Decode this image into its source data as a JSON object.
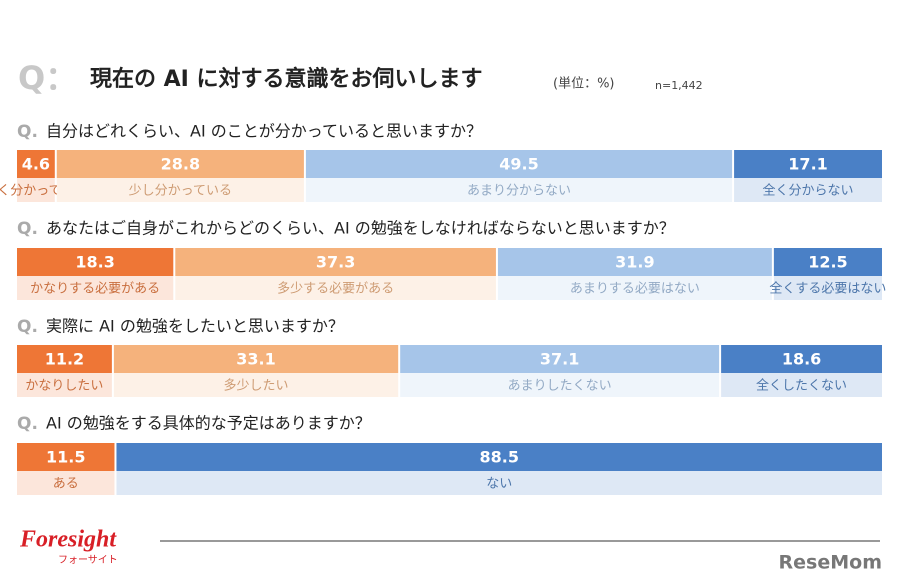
{
  "header": {
    "mark": "Q：",
    "title": "現在の AI に対する意識をお伺いします",
    "unit": "(単位：%)",
    "n": "n=1,442"
  },
  "question_mark": "Q.",
  "chart_data": [
    {
      "type": "stacked_bar",
      "title": "自分はどれくらい、AI のことが分かっていると思いますか？",
      "categories": [
        "よく分かっている",
        "少し分かっている",
        "あまり分からない",
        "全く分からない"
      ],
      "values": [
        4.6,
        28.8,
        49.5,
        17.1
      ],
      "colors": [
        "#ee7636",
        "#f5b27c",
        "#a6c5e9",
        "#4a80c6"
      ],
      "xlim": [
        0,
        100
      ]
    },
    {
      "type": "stacked_bar",
      "title": "あなたはご自身がこれからどのくらい、AI の勉強をしなければならないと思いますか？",
      "categories": [
        "かなりする必要がある",
        "多少する必要がある",
        "あまりする必要はない",
        "全くする必要はない"
      ],
      "values": [
        18.3,
        37.3,
        31.9,
        12.5
      ],
      "colors": [
        "#ee7636",
        "#f5b27c",
        "#a6c5e9",
        "#4a80c6"
      ],
      "xlim": [
        0,
        100
      ]
    },
    {
      "type": "stacked_bar",
      "title": "実際に AI の勉強をしたいと思いますか？",
      "categories": [
        "かなりしたい",
        "多少したい",
        "あまりしたくない",
        "全くしたくない"
      ],
      "values": [
        11.2,
        33.1,
        37.1,
        18.6
      ],
      "colors": [
        "#ee7636",
        "#f5b27c",
        "#a6c5e9",
        "#4a80c6"
      ],
      "xlim": [
        0,
        100
      ]
    },
    {
      "type": "stacked_bar",
      "title": "AI の勉強をする具体的な予定はありますか？",
      "categories": [
        "ある",
        "ない"
      ],
      "values": [
        11.5,
        88.5
      ],
      "colors": [
        "#ee7636",
        "#4a80c6"
      ],
      "xlim": [
        0,
        100
      ]
    }
  ],
  "footer": {
    "brand": "Foresight",
    "brand_kana": "フォーサイト",
    "source": "ReseMom"
  }
}
